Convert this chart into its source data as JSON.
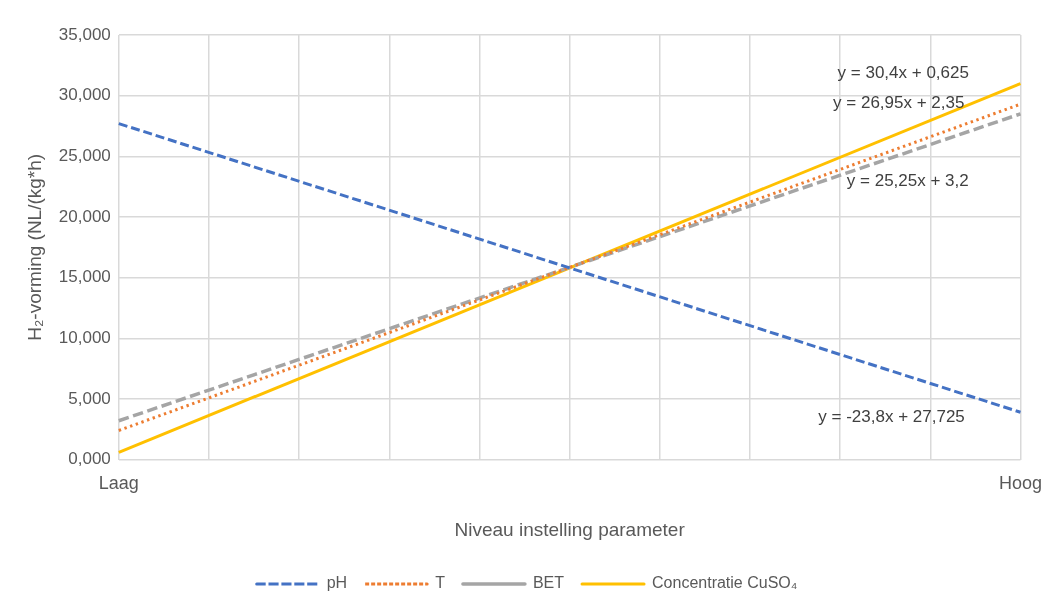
{
  "chart_data": {
    "type": "line",
    "xlabel": "Niveau instelling parameter",
    "ylabel": "H₂-vorming (NL/(kg*h)",
    "categories": [
      "Laag",
      null,
      null,
      null,
      null,
      null,
      null,
      null,
      null,
      null,
      "Hoog"
    ],
    "series": [
      {
        "name": "pH",
        "color": "#4472c4",
        "values": [
          27.7,
          null,
          null,
          null,
          null,
          null,
          null,
          null,
          null,
          null,
          3.9
        ],
        "line_style": "dashed"
      },
      {
        "name": "T",
        "color": "#ed7d31",
        "values": [
          2.4,
          null,
          null,
          null,
          null,
          null,
          null,
          null,
          null,
          null,
          29.3
        ],
        "line_style": "dotted"
      },
      {
        "name": "BET",
        "color": "#a5a5a5",
        "values": [
          3.2,
          null,
          null,
          null,
          null,
          null,
          null,
          null,
          null,
          null,
          28.5
        ],
        "line_style": "dashed"
      },
      {
        "name": "Concentratie CuSO₄",
        "color": "#ffc000",
        "values": [
          0.6,
          null,
          null,
          null,
          null,
          null,
          null,
          null,
          null,
          null,
          31.0
        ],
        "line_style": "solid"
      }
    ],
    "ylim": [
      0,
      35
    ],
    "yticks": [
      {
        "value": 0,
        "label": "0,000"
      },
      {
        "value": 5,
        "label": "5,000"
      },
      {
        "value": 10,
        "label": "10,000"
      },
      {
        "value": 15,
        "label": "15,000"
      },
      {
        "value": 20,
        "label": "20,000"
      },
      {
        "value": 25,
        "label": "25,000"
      },
      {
        "value": 30,
        "label": "30,000"
      },
      {
        "value": 35,
        "label": "35,000"
      }
    ],
    "annotations": [
      "y = 30,4x + 0,625",
      "y = 26,95x + 2,35",
      "y = 25,25x + 3,2",
      "y = -23,8x + 27,725"
    ],
    "grid": true,
    "legend": "bottom",
    "marker": "none"
  }
}
